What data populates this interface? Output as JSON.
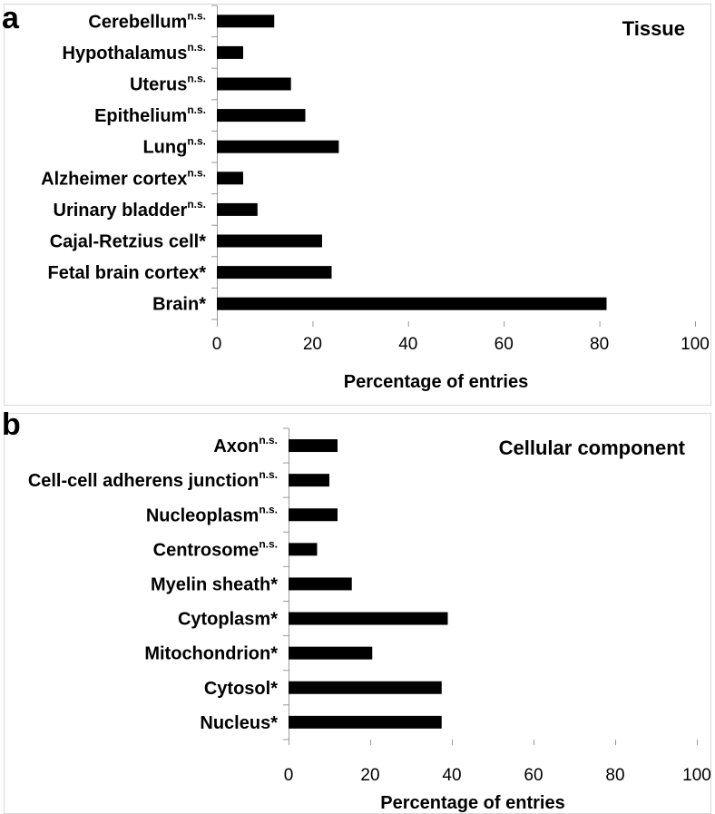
{
  "chart_data": [
    {
      "type": "bar",
      "orientation": "horizontal",
      "panel_label": "a",
      "title": "Tissue",
      "xlabel": "Percentage of entries",
      "ylabel": "",
      "xlim": [
        0,
        100
      ],
      "xticks": [
        0,
        20,
        40,
        60,
        80,
        100
      ],
      "grid": false,
      "categories": [
        {
          "name": "Cerebellum",
          "suffix": "n.s.",
          "sup": true,
          "value": 12
        },
        {
          "name": "Hypothalamus",
          "suffix": "n.s.",
          "sup": true,
          "value": 5.5
        },
        {
          "name": "Uterus",
          "suffix": "n.s.",
          "sup": true,
          "value": 15.5
        },
        {
          "name": "Epithelium",
          "suffix": "n.s.",
          "sup": true,
          "value": 18.5
        },
        {
          "name": "Lung",
          "suffix": "n.s.",
          "sup": true,
          "value": 25.5
        },
        {
          "name": "Alzheimer cortex",
          "suffix": "n.s.",
          "sup": true,
          "value": 5.5
        },
        {
          "name": "Urinary bladder",
          "suffix": "n.s.",
          "sup": true,
          "value": 8.5
        },
        {
          "name": "Cajal-Retzius cell",
          "suffix": "*",
          "sup": false,
          "value": 22
        },
        {
          "name": "Fetal brain cortex",
          "suffix": "*",
          "sup": false,
          "value": 24
        },
        {
          "name": "Brain",
          "suffix": "*",
          "sup": false,
          "value": 81.5
        }
      ],
      "bar_color": "#000000"
    },
    {
      "type": "bar",
      "orientation": "horizontal",
      "panel_label": "b",
      "title": "Cellular component",
      "xlabel": "Percentage of entries",
      "ylabel": "",
      "xlim": [
        0,
        100
      ],
      "xticks": [
        0,
        20,
        40,
        60,
        80,
        100
      ],
      "grid": false,
      "categories": [
        {
          "name": "Axon",
          "suffix": "n.s.",
          "sup": true,
          "value": 12
        },
        {
          "name": "Cell-cell adherens junction",
          "suffix": "n.s.",
          "sup": true,
          "value": 10
        },
        {
          "name": "Nucleoplasm",
          "suffix": "n.s.",
          "sup": true,
          "value": 12
        },
        {
          "name": "Centrosome",
          "suffix": "n.s.",
          "sup": true,
          "value": 7
        },
        {
          "name": "Myelin sheath",
          "suffix": "*",
          "sup": false,
          "value": 15.5
        },
        {
          "name": "Cytoplasm",
          "suffix": "*",
          "sup": false,
          "value": 39
        },
        {
          "name": "Mitochondrion",
          "suffix": "*",
          "sup": false,
          "value": 20.5
        },
        {
          "name": "Cytosol",
          "suffix": "*",
          "sup": false,
          "value": 37.5
        },
        {
          "name": "Nucleus",
          "suffix": "*",
          "sup": false,
          "value": 37.5
        }
      ],
      "bar_color": "#000000"
    }
  ]
}
